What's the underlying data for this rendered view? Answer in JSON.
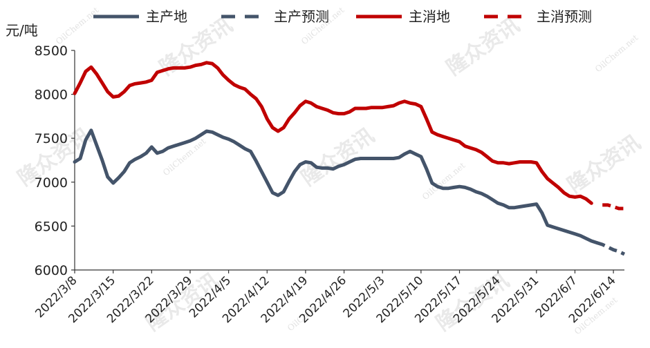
{
  "watermark": {
    "cn": "隆众资讯",
    "en": "OilChem.net"
  },
  "colors": {
    "producer": "#44546A",
    "consumer": "#C00000"
  },
  "chart_data": {
    "type": "line",
    "ylabel": "元/吨",
    "ylim": [
      6000,
      8500
    ],
    "yticks": [
      6000,
      6500,
      7000,
      7500,
      8000,
      8500
    ],
    "grid": false,
    "legend_position": "top",
    "x_ticks": [
      "2022/3/8",
      "2022/3/15",
      "2022/3/22",
      "2022/3/29",
      "2022/4/5",
      "2022/4/12",
      "2022/4/19",
      "2022/4/26",
      "2022/5/3",
      "2022/5/10",
      "2022/5/17",
      "2022/5/24",
      "2022/5/31",
      "2022/6/7",
      "2022/6/14"
    ],
    "x_start": "2022/3/8",
    "x_end": "2022/6/16",
    "series": [
      {
        "name": "主产地",
        "style": "solid",
        "color": "#44546A",
        "points": [
          [
            "2022/3/8",
            7230
          ],
          [
            "2022/3/9",
            7270
          ],
          [
            "2022/3/10",
            7480
          ],
          [
            "2022/3/11",
            7590
          ],
          [
            "2022/3/12",
            7420
          ],
          [
            "2022/3/13",
            7250
          ],
          [
            "2022/3/14",
            7060
          ],
          [
            "2022/3/15",
            6990
          ],
          [
            "2022/3/16",
            7050
          ],
          [
            "2022/3/17",
            7120
          ],
          [
            "2022/3/18",
            7220
          ],
          [
            "2022/3/19",
            7260
          ],
          [
            "2022/3/20",
            7290
          ],
          [
            "2022/3/21",
            7330
          ],
          [
            "2022/3/22",
            7400
          ],
          [
            "2022/3/23",
            7330
          ],
          [
            "2022/3/24",
            7350
          ],
          [
            "2022/3/25",
            7390
          ],
          [
            "2022/3/26",
            7410
          ],
          [
            "2022/3/27",
            7430
          ],
          [
            "2022/3/28",
            7450
          ],
          [
            "2022/3/29",
            7470
          ],
          [
            "2022/3/30",
            7500
          ],
          [
            "2022/3/31",
            7540
          ],
          [
            "2022/4/1",
            7580
          ],
          [
            "2022/4/2",
            7570
          ],
          [
            "2022/4/3",
            7540
          ],
          [
            "2022/4/4",
            7510
          ],
          [
            "2022/4/5",
            7490
          ],
          [
            "2022/4/6",
            7460
          ],
          [
            "2022/4/7",
            7420
          ],
          [
            "2022/4/8",
            7380
          ],
          [
            "2022/4/9",
            7350
          ],
          [
            "2022/4/10",
            7240
          ],
          [
            "2022/4/11",
            7120
          ],
          [
            "2022/4/12",
            7000
          ],
          [
            "2022/4/13",
            6880
          ],
          [
            "2022/4/14",
            6850
          ],
          [
            "2022/4/15",
            6890
          ],
          [
            "2022/4/16",
            7010
          ],
          [
            "2022/4/17",
            7120
          ],
          [
            "2022/4/18",
            7200
          ],
          [
            "2022/4/19",
            7230
          ],
          [
            "2022/4/20",
            7220
          ],
          [
            "2022/4/21",
            7170
          ],
          [
            "2022/4/22",
            7160
          ],
          [
            "2022/4/23",
            7160
          ],
          [
            "2022/4/24",
            7150
          ],
          [
            "2022/4/25",
            7180
          ],
          [
            "2022/4/26",
            7200
          ],
          [
            "2022/4/27",
            7230
          ],
          [
            "2022/4/28",
            7260
          ],
          [
            "2022/4/29",
            7270
          ],
          [
            "2022/4/30",
            7270
          ],
          [
            "2022/5/1",
            7270
          ],
          [
            "2022/5/2",
            7270
          ],
          [
            "2022/5/3",
            7270
          ],
          [
            "2022/5/4",
            7270
          ],
          [
            "2022/5/5",
            7270
          ],
          [
            "2022/5/6",
            7280
          ],
          [
            "2022/5/7",
            7320
          ],
          [
            "2022/5/8",
            7350
          ],
          [
            "2022/5/9",
            7320
          ],
          [
            "2022/5/10",
            7290
          ],
          [
            "2022/5/11",
            7150
          ],
          [
            "2022/5/12",
            6990
          ],
          [
            "2022/5/13",
            6950
          ],
          [
            "2022/5/14",
            6930
          ],
          [
            "2022/5/15",
            6930
          ],
          [
            "2022/5/16",
            6940
          ],
          [
            "2022/5/17",
            6950
          ],
          [
            "2022/5/18",
            6940
          ],
          [
            "2022/5/19",
            6920
          ],
          [
            "2022/5/20",
            6890
          ],
          [
            "2022/5/21",
            6870
          ],
          [
            "2022/5/22",
            6840
          ],
          [
            "2022/5/23",
            6800
          ],
          [
            "2022/5/24",
            6760
          ],
          [
            "2022/5/25",
            6740
          ],
          [
            "2022/5/26",
            6710
          ],
          [
            "2022/5/27",
            6710
          ],
          [
            "2022/5/28",
            6720
          ],
          [
            "2022/5/29",
            6730
          ],
          [
            "2022/5/30",
            6740
          ],
          [
            "2022/5/31",
            6750
          ],
          [
            "2022/6/1",
            6650
          ],
          [
            "2022/6/2",
            6510
          ],
          [
            "2022/6/3",
            6490
          ],
          [
            "2022/6/4",
            6470
          ],
          [
            "2022/6/5",
            6450
          ],
          [
            "2022/6/6",
            6430
          ],
          [
            "2022/6/7",
            6410
          ],
          [
            "2022/6/8",
            6390
          ],
          [
            "2022/6/9",
            6360
          ],
          [
            "2022/6/10",
            6330
          ],
          [
            "2022/6/11",
            6310
          ]
        ]
      },
      {
        "name": "主产预测",
        "style": "dashed",
        "color": "#44546A",
        "points": [
          [
            "2022/6/11",
            6310
          ],
          [
            "2022/6/12",
            6290
          ],
          [
            "2022/6/13",
            6260
          ],
          [
            "2022/6/14",
            6230
          ],
          [
            "2022/6/15",
            6210
          ],
          [
            "2022/6/16",
            6180
          ]
        ]
      },
      {
        "name": "主消地",
        "style": "solid",
        "color": "#C00000",
        "points": [
          [
            "2022/3/8",
            8010
          ],
          [
            "2022/3/9",
            8130
          ],
          [
            "2022/3/10",
            8260
          ],
          [
            "2022/3/11",
            8310
          ],
          [
            "2022/3/12",
            8230
          ],
          [
            "2022/3/13",
            8130
          ],
          [
            "2022/3/14",
            8030
          ],
          [
            "2022/3/15",
            7970
          ],
          [
            "2022/3/16",
            7980
          ],
          [
            "2022/3/17",
            8030
          ],
          [
            "2022/3/18",
            8100
          ],
          [
            "2022/3/19",
            8120
          ],
          [
            "2022/3/20",
            8130
          ],
          [
            "2022/3/21",
            8140
          ],
          [
            "2022/3/22",
            8160
          ],
          [
            "2022/3/23",
            8250
          ],
          [
            "2022/3/24",
            8270
          ],
          [
            "2022/3/25",
            8290
          ],
          [
            "2022/3/26",
            8300
          ],
          [
            "2022/3/27",
            8300
          ],
          [
            "2022/3/28",
            8300
          ],
          [
            "2022/3/29",
            8310
          ],
          [
            "2022/3/30",
            8330
          ],
          [
            "2022/3/31",
            8340
          ],
          [
            "2022/4/1",
            8360
          ],
          [
            "2022/4/2",
            8350
          ],
          [
            "2022/4/3",
            8300
          ],
          [
            "2022/4/4",
            8220
          ],
          [
            "2022/4/5",
            8160
          ],
          [
            "2022/4/6",
            8110
          ],
          [
            "2022/4/7",
            8080
          ],
          [
            "2022/4/8",
            8060
          ],
          [
            "2022/4/9",
            8000
          ],
          [
            "2022/4/10",
            7950
          ],
          [
            "2022/4/11",
            7860
          ],
          [
            "2022/4/12",
            7720
          ],
          [
            "2022/4/13",
            7620
          ],
          [
            "2022/4/14",
            7580
          ],
          [
            "2022/4/15",
            7620
          ],
          [
            "2022/4/16",
            7720
          ],
          [
            "2022/4/17",
            7790
          ],
          [
            "2022/4/18",
            7870
          ],
          [
            "2022/4/19",
            7920
          ],
          [
            "2022/4/20",
            7900
          ],
          [
            "2022/4/21",
            7860
          ],
          [
            "2022/4/22",
            7840
          ],
          [
            "2022/4/23",
            7820
          ],
          [
            "2022/4/24",
            7790
          ],
          [
            "2022/4/25",
            7780
          ],
          [
            "2022/4/26",
            7780
          ],
          [
            "2022/4/27",
            7800
          ],
          [
            "2022/4/28",
            7840
          ],
          [
            "2022/4/29",
            7840
          ],
          [
            "2022/4/30",
            7840
          ],
          [
            "2022/5/1",
            7850
          ],
          [
            "2022/5/2",
            7850
          ],
          [
            "2022/5/3",
            7850
          ],
          [
            "2022/5/4",
            7860
          ],
          [
            "2022/5/5",
            7870
          ],
          [
            "2022/5/6",
            7900
          ],
          [
            "2022/5/7",
            7920
          ],
          [
            "2022/5/8",
            7900
          ],
          [
            "2022/5/9",
            7890
          ],
          [
            "2022/5/10",
            7860
          ],
          [
            "2022/5/11",
            7720
          ],
          [
            "2022/5/12",
            7570
          ],
          [
            "2022/5/13",
            7540
          ],
          [
            "2022/5/14",
            7520
          ],
          [
            "2022/5/15",
            7500
          ],
          [
            "2022/5/16",
            7480
          ],
          [
            "2022/5/17",
            7460
          ],
          [
            "2022/5/18",
            7410
          ],
          [
            "2022/5/19",
            7390
          ],
          [
            "2022/5/20",
            7370
          ],
          [
            "2022/5/21",
            7340
          ],
          [
            "2022/5/22",
            7290
          ],
          [
            "2022/5/23",
            7240
          ],
          [
            "2022/5/24",
            7220
          ],
          [
            "2022/5/25",
            7220
          ],
          [
            "2022/5/26",
            7210
          ],
          [
            "2022/5/27",
            7220
          ],
          [
            "2022/5/28",
            7230
          ],
          [
            "2022/5/29",
            7230
          ],
          [
            "2022/5/30",
            7230
          ],
          [
            "2022/5/31",
            7220
          ],
          [
            "2022/6/1",
            7120
          ],
          [
            "2022/6/2",
            7040
          ],
          [
            "2022/6/3",
            6990
          ],
          [
            "2022/6/4",
            6940
          ],
          [
            "2022/6/5",
            6880
          ],
          [
            "2022/6/6",
            6840
          ],
          [
            "2022/6/7",
            6830
          ],
          [
            "2022/6/8",
            6840
          ],
          [
            "2022/6/9",
            6810
          ],
          [
            "2022/6/10",
            6760
          ]
        ]
      },
      {
        "name": "主消预测",
        "style": "dashed",
        "color": "#C00000",
        "points": [
          [
            "2022/6/12",
            6740
          ],
          [
            "2022/6/13",
            6740
          ],
          [
            "2022/6/14",
            6720
          ],
          [
            "2022/6/15",
            6700
          ],
          [
            "2022/6/16",
            6700
          ]
        ]
      }
    ]
  }
}
